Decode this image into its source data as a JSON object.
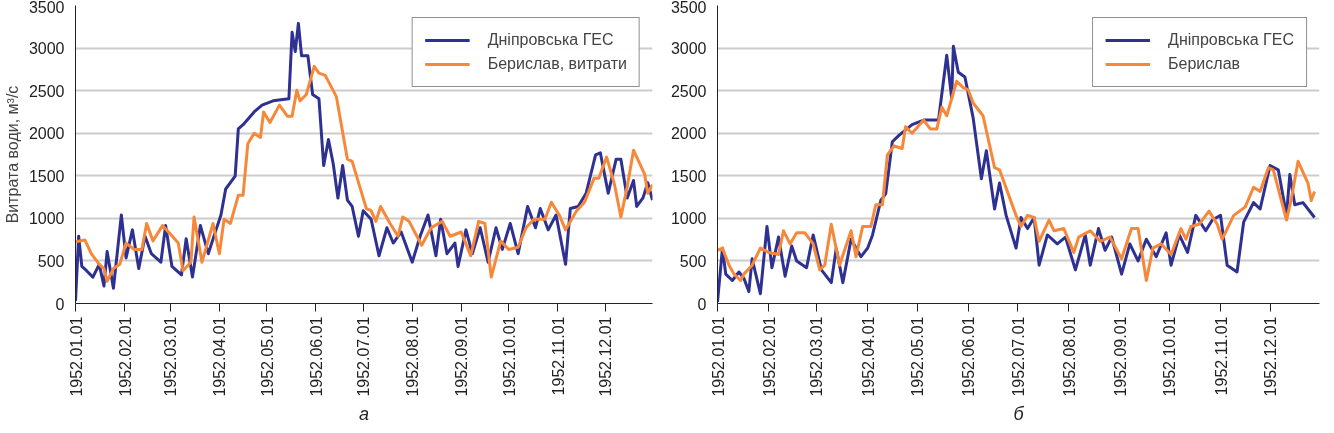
{
  "chart_data": [
    {
      "type": "line",
      "ylabel": "Витрата води, м³/с",
      "annotations": [
        "а"
      ],
      "xlim": [
        "1952-01-01",
        "1952-12-31"
      ],
      "xticks": [
        {
          "value": "1952-01-01",
          "label": "1952.01.01"
        },
        {
          "value": "1952-02-01",
          "label": "1952.02.01"
        },
        {
          "value": "1952-03-01",
          "label": "1952.03.01"
        },
        {
          "value": "1952-04-01",
          "label": "1952.04.01"
        },
        {
          "value": "1952-05-01",
          "label": "1952.05.01"
        },
        {
          "value": "1952-06-01",
          "label": "1952.06.01"
        },
        {
          "value": "1952-07-01",
          "label": "1952.07.01"
        },
        {
          "value": "1952-08-01",
          "label": "1952.08.01"
        },
        {
          "value": "1952-09-01",
          "label": "1952.09.01"
        },
        {
          "value": "1952-10-01",
          "label": "1952.10.01"
        },
        {
          "value": "1952-11-01",
          "label": "1952.11.01"
        },
        {
          "value": "1952-12-01",
          "label": "1952.12.01"
        }
      ],
      "ylim": [
        0,
        3500
      ],
      "yticks": [
        0,
        500,
        1000,
        1500,
        2000,
        2500,
        3000,
        3500
      ],
      "grid": "y",
      "legend": "top right",
      "series": [
        {
          "name": "Дніпровська ГЕС",
          "color": "#2e3192",
          "x": [
            "1952-01-01",
            "1952-01-03",
            "1952-01-05",
            "1952-01-08",
            "1952-01-12",
            "1952-01-16",
            "1952-01-19",
            "1952-01-21",
            "1952-01-25",
            "1952-01-30",
            "1952-02-02",
            "1952-02-06",
            "1952-02-10",
            "1952-02-14",
            "1952-02-18",
            "1952-02-24",
            "1952-02-27",
            "1952-03-02",
            "1952-03-08",
            "1952-03-11",
            "1952-03-15",
            "1952-03-20",
            "1952-03-25",
            "1952-03-29",
            "1952-04-02",
            "1952-04-05",
            "1952-04-11",
            "1952-04-13",
            "1952-04-16",
            "1952-04-23",
            "1952-04-28",
            "1952-05-05",
            "1952-05-15",
            "1952-05-17",
            "1952-05-19",
            "1952-05-21",
            "1952-05-23",
            "1952-05-27",
            "1952-05-30",
            "1952-06-03",
            "1952-06-06",
            "1952-06-09",
            "1952-06-12",
            "1952-06-15",
            "1952-06-18",
            "1952-06-21",
            "1952-06-24",
            "1952-06-28",
            "1952-07-01",
            "1952-07-06",
            "1952-07-11",
            "1952-07-16",
            "1952-07-20",
            "1952-07-25",
            "1952-08-01",
            "1952-08-06",
            "1952-08-11",
            "1952-08-16",
            "1952-08-19",
            "1952-08-23",
            "1952-08-28",
            "1952-08-30",
            "1952-09-04",
            "1952-09-08",
            "1952-09-13",
            "1952-09-18",
            "1952-09-23",
            "1952-09-27",
            "1952-10-02",
            "1952-10-07",
            "1952-10-13",
            "1952-10-18",
            "1952-10-21",
            "1952-10-26",
            "1952-10-31",
            "1952-11-06",
            "1952-11-09",
            "1952-11-14",
            "1952-11-19",
            "1952-11-25",
            "1952-11-28",
            "1952-12-03",
            "1952-12-08",
            "1952-12-11",
            "1952-12-15",
            "1952-12-19",
            "1952-12-21",
            "1952-12-25",
            "1952-12-28",
            "1952-12-31"
          ],
          "values": [
            30,
            790,
            435,
            385,
            310,
            460,
            205,
            610,
            180,
            1040,
            535,
            865,
            410,
            790,
            585,
            485,
            915,
            435,
            335,
            760,
            310,
            915,
            585,
            815,
            1040,
            1345,
            1495,
            2050,
            2100,
            2250,
            2330,
            2380,
            2405,
            3185,
            2960,
            3290,
            2910,
            2910,
            2455,
            2405,
            1620,
            1925,
            1645,
            1240,
            1620,
            1215,
            1140,
            790,
            1090,
            990,
            560,
            890,
            710,
            840,
            485,
            790,
            1040,
            560,
            990,
            585,
            710,
            435,
            865,
            585,
            890,
            485,
            890,
            635,
            940,
            585,
            1140,
            890,
            1115,
            865,
            1040,
            460,
            1115,
            1140,
            1295,
            1745,
            1770,
            1295,
            1695,
            1695,
            1240,
            1445,
            1140,
            1240,
            1420,
            1215
          ]
        },
        {
          "name": "Берислав, витрати",
          "color": "#f7883a",
          "x": [
            "1952-01-01",
            "1952-01-07",
            "1952-01-11",
            "1952-01-16",
            "1952-01-19",
            "1952-01-21",
            "1952-01-25",
            "1952-01-29",
            "1952-02-02",
            "1952-02-07",
            "1952-02-12",
            "1952-02-15",
            "1952-02-19",
            "1952-02-25",
            "1952-03-01",
            "1952-03-06",
            "1952-03-09",
            "1952-03-14",
            "1952-03-16",
            "1952-03-21",
            "1952-03-28",
            "1952-04-01",
            "1952-04-04",
            "1952-04-08",
            "1952-04-13",
            "1952-04-16",
            "1952-04-19",
            "1952-04-23",
            "1952-04-27",
            "1952-04-29",
            "1952-05-03",
            "1952-05-09",
            "1952-05-14",
            "1952-05-17",
            "1952-05-20",
            "1952-05-22",
            "1952-05-26",
            "1952-05-31",
            "1952-06-03",
            "1952-06-07",
            "1952-06-14",
            "1952-06-21",
            "1952-06-24",
            "1952-07-03",
            "1952-07-06",
            "1952-07-09",
            "1952-07-12",
            "1952-07-18",
            "1952-07-23",
            "1952-07-26",
            "1952-07-30",
            "1952-08-07",
            "1952-08-13",
            "1952-08-20",
            "1952-08-25",
            "1952-09-01",
            "1952-09-07",
            "1952-09-12",
            "1952-09-16",
            "1952-09-20",
            "1952-09-26",
            "1952-10-01",
            "1952-10-07",
            "1952-10-12",
            "1952-10-17",
            "1952-10-24",
            "1952-10-28",
            "1952-11-02",
            "1952-11-06",
            "1952-11-13",
            "1952-11-18",
            "1952-11-24",
            "1952-11-27",
            "1952-12-02",
            "1952-12-07",
            "1952-12-11",
            "1952-12-15",
            "1952-12-19",
            "1952-12-26",
            "1952-12-28",
            "1952-12-31"
          ],
          "values": [
            725,
            745,
            585,
            460,
            410,
            260,
            410,
            460,
            710,
            635,
            635,
            940,
            735,
            915,
            815,
            710,
            385,
            485,
            1015,
            485,
            940,
            585,
            990,
            940,
            1270,
            1270,
            1875,
            2000,
            1950,
            2250,
            2125,
            2330,
            2200,
            2200,
            2505,
            2380,
            2455,
            2785,
            2705,
            2680,
            2430,
            1695,
            1670,
            1115,
            1090,
            965,
            1140,
            940,
            790,
            1015,
            965,
            685,
            890,
            965,
            790,
            840,
            560,
            965,
            940,
            310,
            735,
            635,
            660,
            890,
            990,
            990,
            1190,
            1040,
            865,
            1090,
            1190,
            1470,
            1470,
            1720,
            1395,
            1015,
            1370,
            1800,
            1520,
            1295,
            1395
          ]
        }
      ]
    },
    {
      "type": "line",
      "annotations": [
        "б"
      ],
      "xlim": [
        "1952-01-01",
        "1952-12-31"
      ],
      "xticks": [
        {
          "value": "1952-01-01",
          "label": "1952.01.01"
        },
        {
          "value": "1952-02-01",
          "label": "1952.02.01"
        },
        {
          "value": "1952-03-01",
          "label": "1952.03.01"
        },
        {
          "value": "1952-04-01",
          "label": "1952.04.01"
        },
        {
          "value": "1952-05-01",
          "label": "1952.05.01"
        },
        {
          "value": "1952-06-01",
          "label": "1952.06.01"
        },
        {
          "value": "1952-07-01",
          "label": "1952.07.01"
        },
        {
          "value": "1952-08-01",
          "label": "1952.08.01"
        },
        {
          "value": "1952-09-01",
          "label": "1952.09.01"
        },
        {
          "value": "1952-10-01",
          "label": "1952.10.01"
        },
        {
          "value": "1952-11-01",
          "label": "1952.11.01"
        },
        {
          "value": "1952-12-01",
          "label": "1952.12.01"
        }
      ],
      "ylim": [
        0,
        3500
      ],
      "yticks": [
        0,
        500,
        1000,
        1500,
        2000,
        2500,
        3000,
        3500
      ],
      "grid": "y",
      "legend": "top right",
      "series": [
        {
          "name": "Дніпровська ГЕС",
          "color": "#2e3192",
          "x": [
            "1952-01-01",
            "1952-01-04",
            "1952-01-06",
            "1952-01-10",
            "1952-01-14",
            "1952-01-17",
            "1952-01-20",
            "1952-01-22",
            "1952-01-27",
            "1952-01-31",
            "1952-02-03",
            "1952-02-07",
            "1952-02-11",
            "1952-02-15",
            "1952-02-18",
            "1952-02-24",
            "1952-02-28",
            "1952-03-04",
            "1952-03-10",
            "1952-03-13",
            "1952-03-17",
            "1952-03-22",
            "1952-03-28",
            "1952-04-01",
            "1952-04-04",
            "1952-04-09",
            "1952-04-12",
            "1952-04-16",
            "1952-04-20",
            "1952-04-28",
            "1952-05-05",
            "1952-05-14",
            "1952-05-19",
            "1952-05-22",
            "1952-05-23",
            "1952-05-26",
            "1952-05-30",
            "1952-06-04",
            "1952-06-09",
            "1952-06-12",
            "1952-06-17",
            "1952-06-20",
            "1952-06-24",
            "1952-06-30",
            "1952-07-03",
            "1952-07-07",
            "1952-07-11",
            "1952-07-14",
            "1952-07-19",
            "1952-07-25",
            "1952-07-30",
            "1952-08-05",
            "1952-08-11",
            "1952-08-14",
            "1952-08-19",
            "1952-08-23",
            "1952-08-27",
            "1952-09-02",
            "1952-09-07",
            "1952-09-12",
            "1952-09-17",
            "1952-09-23",
            "1952-09-29",
            "1952-10-02",
            "1952-10-07",
            "1952-10-12",
            "1952-10-17",
            "1952-10-23",
            "1952-10-27",
            "1952-11-01",
            "1952-11-05",
            "1952-11-11",
            "1952-11-15",
            "1952-11-21",
            "1952-11-25",
            "1952-12-01",
            "1952-12-06",
            "1952-12-11",
            "1952-12-13",
            "1952-12-16",
            "1952-12-21",
            "1952-12-26",
            "1952-12-28"
          ],
          "values": [
            15,
            650,
            345,
            270,
            370,
            295,
            140,
            525,
            115,
            905,
            420,
            780,
            320,
            675,
            500,
            420,
            805,
            395,
            245,
            650,
            245,
            755,
            550,
            650,
            805,
            1210,
            1290,
            1900,
            1975,
            2100,
            2155,
            2155,
            2915,
            2410,
            3020,
            2715,
            2660,
            2180,
            1465,
            1795,
            1110,
            1415,
            1035,
            650,
            1010,
            880,
            1010,
            450,
            805,
            700,
            780,
            395,
            805,
            450,
            880,
            625,
            780,
            345,
            700,
            500,
            755,
            550,
            830,
            450,
            805,
            600,
            1035,
            855,
            980,
            1035,
            450,
            370,
            955,
            1185,
            1110,
            1620,
            1570,
            1035,
            1515,
            1160,
            1185,
            1060,
            1010
          ]
        },
        {
          "name": "Берислав",
          "color": "#f7883a",
          "x": [
            "1952-01-01",
            "1952-01-04",
            "1952-01-08",
            "1952-01-11",
            "1952-01-15",
            "1952-01-17",
            "1952-01-22",
            "1952-01-27",
            "1952-02-01",
            "1952-02-07",
            "1952-02-10",
            "1952-02-14",
            "1952-02-18",
            "1952-02-23",
            "1952-02-28",
            "1952-03-03",
            "1952-03-06",
            "1952-03-10",
            "1952-03-15",
            "1952-03-22",
            "1952-03-25",
            "1952-03-29",
            "1952-04-03",
            "1952-04-06",
            "1952-04-10",
            "1952-04-13",
            "1952-04-17",
            "1952-04-22",
            "1952-04-24",
            "1952-04-28",
            "1952-05-05",
            "1952-05-09",
            "1952-05-13",
            "1952-05-16",
            "1952-05-19",
            "1952-05-25",
            "1952-05-29",
            "1952-06-01",
            "1952-06-04",
            "1952-06-10",
            "1952-06-17",
            "1952-06-20",
            "1952-06-30",
            "1952-07-03",
            "1952-07-07",
            "1952-07-11",
            "1952-07-14",
            "1952-07-20",
            "1952-07-23",
            "1952-07-29",
            "1952-08-04",
            "1952-08-07",
            "1952-08-14",
            "1952-08-20",
            "1952-08-26",
            "1952-09-02",
            "1952-09-08",
            "1952-09-12",
            "1952-09-17",
            "1952-09-21",
            "1952-09-26",
            "1952-10-02",
            "1952-10-08",
            "1952-10-11",
            "1952-10-14",
            "1952-10-19",
            "1952-10-25",
            "1952-10-30",
            "1952-11-02",
            "1952-11-09",
            "1952-11-16",
            "1952-11-21",
            "1952-11-25",
            "1952-11-30",
            "1952-12-03",
            "1952-12-11",
            "1952-12-14",
            "1952-12-18",
            "1952-12-24",
            "1952-12-26",
            "1952-12-28"
          ],
          "values": [
            625,
            650,
            450,
            345,
            270,
            345,
            450,
            650,
            600,
            575,
            855,
            700,
            830,
            830,
            700,
            395,
            450,
            930,
            450,
            855,
            550,
            905,
            905,
            1160,
            1160,
            1745,
            1850,
            1820,
            2075,
            2000,
            2155,
            2050,
            2050,
            2305,
            2205,
            2610,
            2535,
            2510,
            2355,
            2205,
            1595,
            1570,
            1035,
            905,
            1035,
            1010,
            730,
            980,
            855,
            880,
            600,
            780,
            855,
            730,
            780,
            525,
            880,
            880,
            270,
            650,
            700,
            575,
            880,
            755,
            905,
            930,
            1085,
            930,
            755,
            1035,
            1135,
            1365,
            1315,
            1595,
            1570,
            980,
            1235,
            1670,
            1415,
            1210,
            1315
          ]
        }
      ]
    }
  ]
}
